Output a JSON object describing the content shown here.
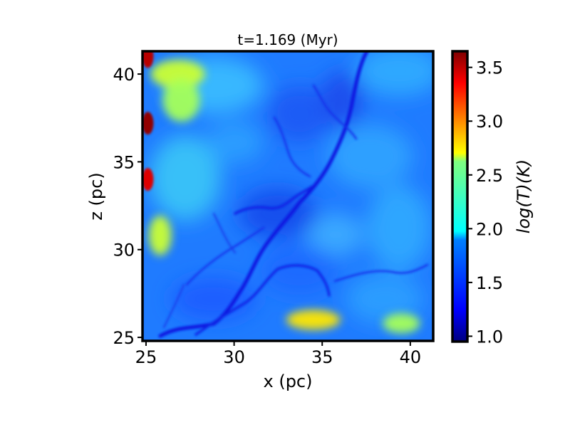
{
  "chart_data": {
    "type": "heatmap",
    "title": "t=1.169 (Myr)",
    "xlabel": "x (pc)",
    "ylabel": "z (pc)",
    "xlim": [
      24.8,
      41.3
    ],
    "ylim": [
      24.8,
      41.3
    ],
    "xticks": [
      25,
      30,
      35,
      40
    ],
    "yticks": [
      25,
      30,
      35,
      40
    ],
    "colorbar": {
      "label": "log(T)(K)",
      "colormap": "jet",
      "range": [
        0.95,
        3.65
      ],
      "ticks": [
        "1.0",
        "1.5",
        "2.0",
        "2.5",
        "3.0",
        "3.5"
      ]
    },
    "features": {
      "background_level": 1.8,
      "filament_level": 1.2,
      "warm_patches": [
        {
          "x": 26.8,
          "z": 40.0,
          "value": 2.5
        },
        {
          "x": 27.0,
          "z": 38.5,
          "value": 2.4
        },
        {
          "x": 25.8,
          "z": 30.8,
          "value": 2.5
        },
        {
          "x": 34.5,
          "z": 26.0,
          "value": 2.7
        },
        {
          "x": 39.5,
          "z": 25.8,
          "value": 2.4
        }
      ],
      "hot_edge_spots": [
        {
          "x": 25.1,
          "z": 41.0,
          "value": 3.5
        },
        {
          "x": 25.1,
          "z": 37.2,
          "value": 3.6
        },
        {
          "x": 25.1,
          "z": 34.0,
          "value": 3.4
        }
      ]
    }
  }
}
